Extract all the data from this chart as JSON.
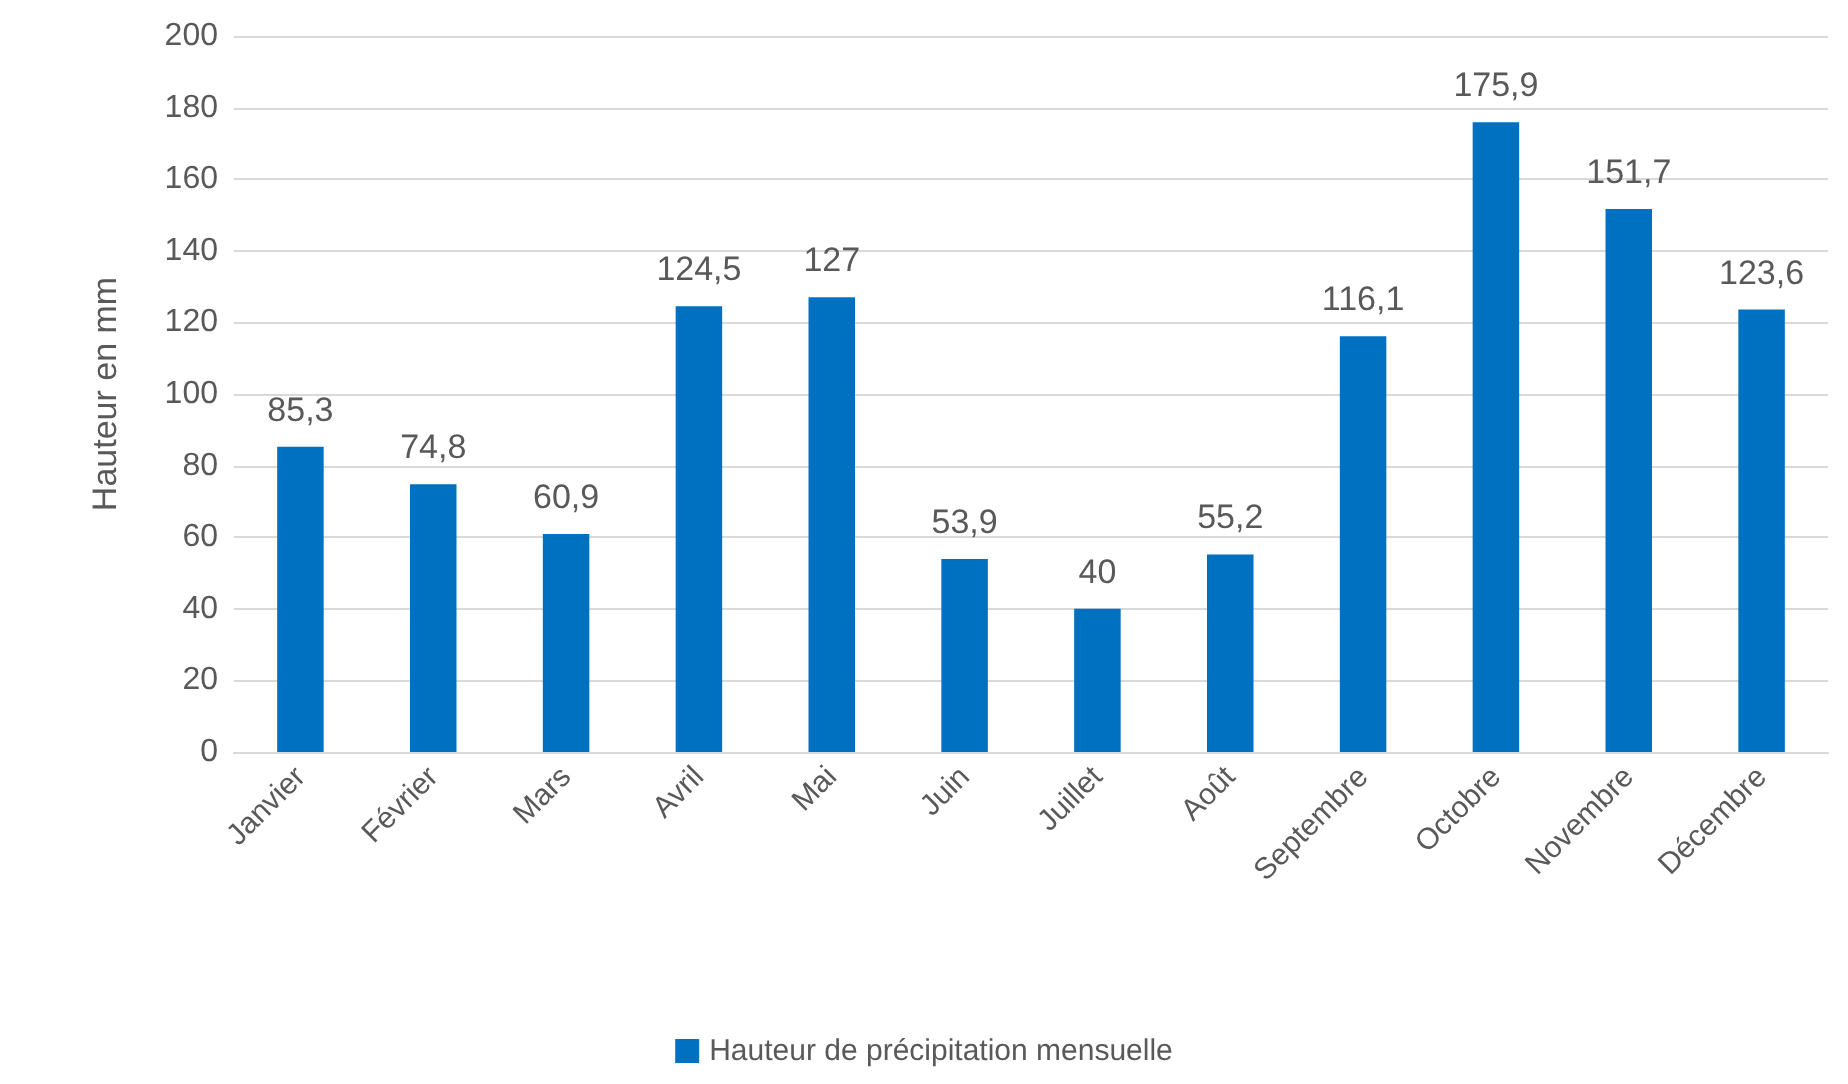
{
  "chart_data": {
    "type": "bar",
    "ylabel": "Hauteur en mm",
    "categories": [
      "Janvier",
      "Février",
      "Mars",
      "Avril",
      "Mai",
      "Juin",
      "Juillet",
      "Août",
      "Septembre",
      "Octobre",
      "Novembre",
      "Décembre"
    ],
    "series": [
      {
        "name": "Hauteur de précipitation mensuelle",
        "color": "#0070c0",
        "values": [
          85.3,
          74.8,
          60.9,
          124.5,
          127,
          53.9,
          40,
          55.2,
          116.1,
          175.9,
          151.7,
          123.6
        ],
        "value_labels": [
          "85,3",
          "74,8",
          "60,9",
          "124,5",
          "127",
          "53,9",
          "40",
          "55,2",
          "116,1",
          "175,9",
          "151,7",
          "123,6"
        ]
      }
    ],
    "ylim": [
      0,
      200
    ],
    "yticks": [
      0,
      20,
      40,
      60,
      80,
      100,
      120,
      140,
      160,
      180,
      200
    ],
    "grid": "y",
    "legend": "bottom"
  }
}
